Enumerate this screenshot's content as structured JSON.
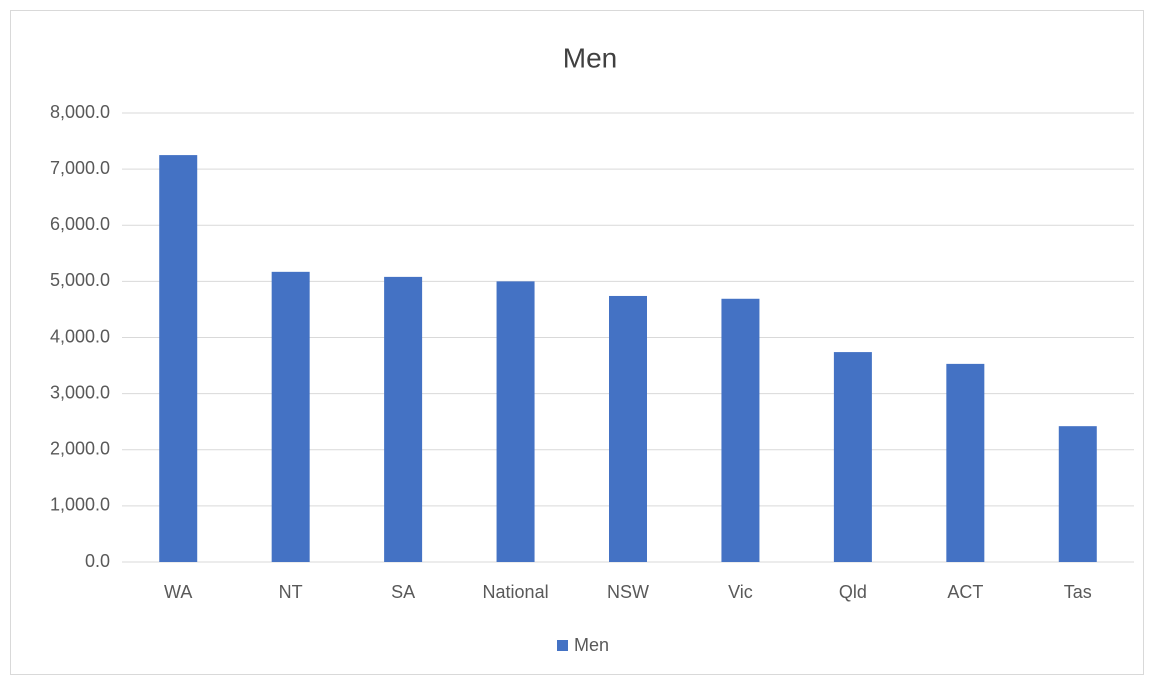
{
  "chart_data": {
    "type": "bar",
    "title": "Men",
    "categories": [
      "WA",
      "NT",
      "SA",
      "National",
      "NSW",
      "Vic",
      "Qld",
      "ACT",
      "Tas"
    ],
    "series": [
      {
        "name": "Men",
        "color": "#4472c4",
        "values": [
          7250,
          5170,
          5080,
          5000,
          4740,
          4690,
          3740,
          3530,
          2420
        ]
      }
    ],
    "ylim": [
      0,
      8000
    ],
    "yticks": [
      {
        "value": 0,
        "label": "0.0"
      },
      {
        "value": 1000,
        "label": "1,000.0"
      },
      {
        "value": 2000,
        "label": "2,000.0"
      },
      {
        "value": 3000,
        "label": "3,000.0"
      },
      {
        "value": 4000,
        "label": "4,000.0"
      },
      {
        "value": 5000,
        "label": "5,000.0"
      },
      {
        "value": 6000,
        "label": "6,000.0"
      },
      {
        "value": 7000,
        "label": "7,000.0"
      },
      {
        "value": 8000,
        "label": "8,000.0"
      }
    ],
    "grid": true,
    "legend": "bottom"
  }
}
